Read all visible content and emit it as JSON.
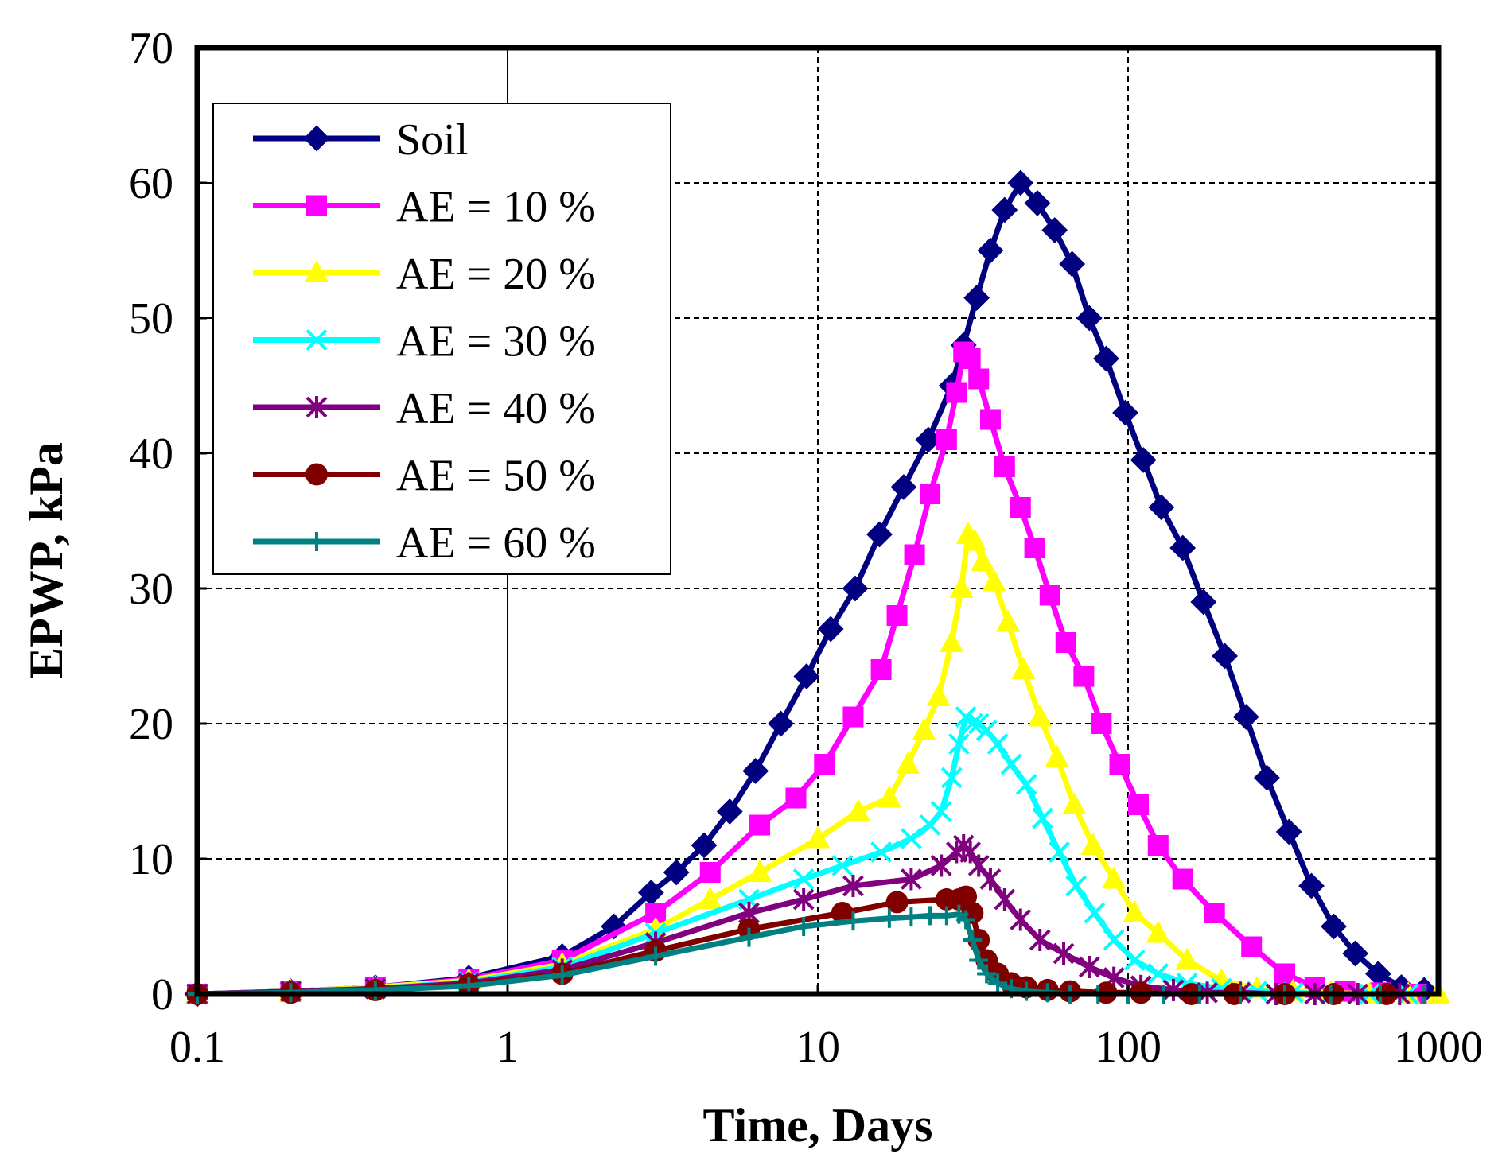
{
  "chart_data": {
    "type": "line",
    "title": "",
    "xlabel": "Time, Days",
    "ylabel": "EPWP, kPa",
    "xscale": "log",
    "xlim": [
      0.1,
      1000
    ],
    "ylim": [
      0,
      70
    ],
    "x_ticks": [
      0.1,
      1,
      10,
      100,
      1000
    ],
    "x_tick_labels": [
      "0.1",
      "1",
      "10",
      "100",
      "1000"
    ],
    "y_ticks": [
      0,
      10,
      20,
      30,
      40,
      50,
      60,
      70
    ],
    "y_tick_labels": [
      "0",
      "10",
      "20",
      "30",
      "40",
      "50",
      "60",
      "70"
    ],
    "grid": true,
    "legend_position": "top-left",
    "series": [
      {
        "name": "Soil",
        "color": "#000080",
        "marker": "diamond",
        "x": [
          0.1,
          0.2,
          0.375,
          0.75,
          1.5,
          2.2,
          2.9,
          3.5,
          4.3,
          5.2,
          6.3,
          7.6,
          9.2,
          11,
          13.2,
          15.8,
          18.9,
          22.7,
          27,
          29.5,
          32.5,
          36,
          40,
          45,
          51,
          58,
          66,
          75,
          85,
          98,
          112,
          128,
          150,
          175,
          205,
          240,
          280,
          330,
          390,
          460,
          540,
          640,
          760,
          900
        ],
        "y": [
          0,
          0.2,
          0.5,
          1.2,
          2.8,
          5,
          7.5,
          9,
          11,
          13.5,
          16.5,
          20,
          23.5,
          27,
          30,
          34,
          37.5,
          41,
          45,
          48,
          51.5,
          55,
          58,
          60,
          58.5,
          56.5,
          54,
          50,
          47,
          43,
          39.5,
          36,
          33,
          29,
          25,
          20.5,
          16,
          12,
          8,
          5,
          3,
          1.5,
          0.5,
          0.3
        ]
      },
      {
        "name": "AE = 10 %",
        "color": "#FF00FF",
        "marker": "square",
        "x": [
          0.1,
          0.2,
          0.375,
          0.75,
          1.5,
          3,
          4.5,
          6.5,
          8.5,
          10.5,
          13,
          16,
          18,
          20.5,
          23,
          26,
          28,
          29.5,
          31,
          33,
          36,
          40,
          45,
          50,
          56,
          63,
          72,
          82,
          94,
          108,
          125,
          150,
          190,
          250,
          320,
          400,
          500,
          650,
          850
        ],
        "y": [
          0,
          0.2,
          0.5,
          1.1,
          2.5,
          6,
          9,
          12.5,
          14.5,
          17,
          20.5,
          24,
          28,
          32.5,
          37,
          41,
          44.5,
          47.5,
          47,
          45.5,
          42.5,
          39,
          36,
          33,
          29.5,
          26,
          23.5,
          20,
          17,
          14,
          11,
          8.5,
          6,
          3.5,
          1.5,
          0.5,
          0.2,
          0.1,
          0
        ]
      },
      {
        "name": "AE = 20 %",
        "color": "#FFFF00",
        "marker": "triangle",
        "x": [
          0.1,
          0.2,
          0.375,
          0.75,
          1.5,
          3,
          4.5,
          6.5,
          10,
          13.5,
          17,
          19.5,
          22,
          24.5,
          27,
          29,
          30.5,
          32,
          34,
          37,
          41,
          46,
          52,
          59,
          67,
          77,
          90,
          105,
          125,
          155,
          200,
          260,
          340,
          450,
          600,
          800,
          1000
        ],
        "y": [
          0,
          0.2,
          0.5,
          1.0,
          2.2,
          4.8,
          7.0,
          9.0,
          11.5,
          13.5,
          14.5,
          17,
          19.5,
          22,
          26,
          30,
          34,
          33.5,
          32,
          30.5,
          27.5,
          24,
          20.5,
          17.5,
          14,
          11,
          8.5,
          6,
          4.5,
          2.5,
          1,
          0.4,
          0.2,
          0.1,
          0,
          0,
          0
        ]
      },
      {
        "name": "AE = 30 %",
        "color": "#00FFFF",
        "marker": "x",
        "x": [
          0.1,
          0.2,
          0.375,
          0.75,
          1.5,
          3,
          6,
          9,
          12,
          16,
          20,
          23,
          25,
          27,
          28.5,
          30,
          31.5,
          33,
          35,
          38,
          42,
          47,
          53,
          60,
          68,
          78,
          90,
          105,
          125,
          155,
          200,
          260,
          340,
          450,
          600,
          800
        ],
        "y": [
          0,
          0.2,
          0.4,
          0.9,
          2.0,
          4.5,
          7.0,
          8.5,
          9.5,
          10.5,
          11.5,
          12.5,
          13.5,
          16,
          18.5,
          20.5,
          20,
          20,
          19.5,
          18.5,
          17,
          15.5,
          13,
          10.5,
          8,
          6,
          4,
          2.5,
          1.5,
          0.8,
          0.4,
          0.2,
          0.1,
          0,
          0,
          0
        ]
      },
      {
        "name": "AE = 40 %",
        "color": "#800080",
        "marker": "asterisk",
        "x": [
          0.1,
          0.2,
          0.375,
          0.75,
          1.5,
          3,
          6,
          9,
          13,
          20,
          25,
          28,
          29.5,
          31,
          33,
          36,
          40,
          45,
          52,
          62,
          75,
          90,
          110,
          140,
          180,
          230,
          300,
          400,
          550,
          750
        ],
        "y": [
          0,
          0.2,
          0.4,
          0.8,
          1.8,
          3.8,
          6,
          7,
          8,
          8.5,
          9.5,
          10.5,
          11,
          10.5,
          9.5,
          8.5,
          7,
          5.5,
          4,
          3,
          2,
          1.2,
          0.6,
          0.3,
          0.1,
          0.1,
          0,
          0,
          0,
          0
        ]
      },
      {
        "name": "AE = 50 %",
        "color": "#800000",
        "marker": "circle",
        "x": [
          0.1,
          0.2,
          0.375,
          0.75,
          1.5,
          3,
          6,
          12,
          18,
          26,
          28.5,
          30,
          31.5,
          33,
          35,
          38,
          42,
          47,
          55,
          65,
          85,
          110,
          160,
          220,
          320,
          460,
          680
        ],
        "y": [
          0,
          0.1,
          0.3,
          0.7,
          1.5,
          3.2,
          4.8,
          6.0,
          6.8,
          7,
          7.0,
          7.2,
          6.0,
          4.0,
          2.5,
          1.5,
          0.8,
          0.5,
          0.3,
          0.2,
          0.1,
          0.1,
          0,
          0,
          0,
          0,
          0
        ]
      },
      {
        "name": "AE = 60 %",
        "color": "#008080",
        "marker": "plus",
        "x": [
          0.1,
          0.2,
          0.375,
          0.75,
          1.5,
          3,
          6,
          9,
          13,
          17,
          20,
          23,
          26,
          28.5,
          30,
          31.5,
          33,
          35,
          38,
          42,
          47,
          55,
          65,
          80,
          100,
          130,
          170,
          230,
          320,
          450,
          650,
          900
        ],
        "y": [
          0,
          0.1,
          0.3,
          0.6,
          1.4,
          2.8,
          4.2,
          5.0,
          5.4,
          5.6,
          5.7,
          5.8,
          5.8,
          5.9,
          5.5,
          4.0,
          2.5,
          1.5,
          0.8,
          0.4,
          0.2,
          0.1,
          0,
          0,
          0,
          0,
          0,
          0,
          0,
          0,
          0,
          0
        ]
      }
    ]
  }
}
